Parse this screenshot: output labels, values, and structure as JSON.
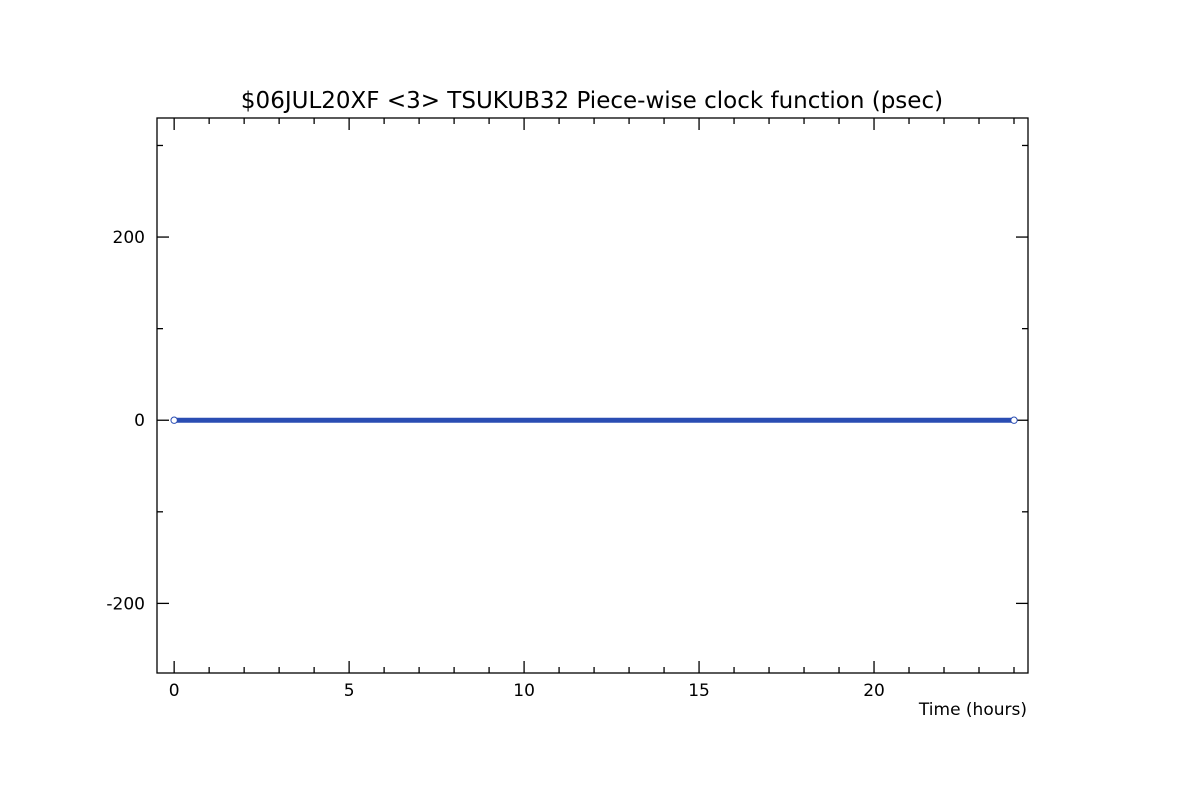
{
  "chart_data": {
    "type": "line",
    "title": "$06JUL20XF <3>  TSUKUB32  Piece-wise clock function (psec)",
    "xlabel": "Time (hours)",
    "x": [
      0,
      24
    ],
    "series": [
      {
        "values": [
          0,
          0
        ],
        "color": "#2a4db3"
      }
    ],
    "xlim": [
      -0.49,
      24.4
    ],
    "ylim": [
      -276,
      330
    ],
    "xticks": [
      0,
      5,
      10,
      15,
      20
    ],
    "yticks": [
      -200,
      0,
      200
    ],
    "xminorticks": [
      1,
      2,
      3,
      4,
      6,
      7,
      8,
      9,
      11,
      12,
      13,
      14,
      16,
      17,
      18,
      19,
      21,
      22,
      23,
      24
    ],
    "yminorticks": [
      -100,
      100,
      300
    ]
  }
}
